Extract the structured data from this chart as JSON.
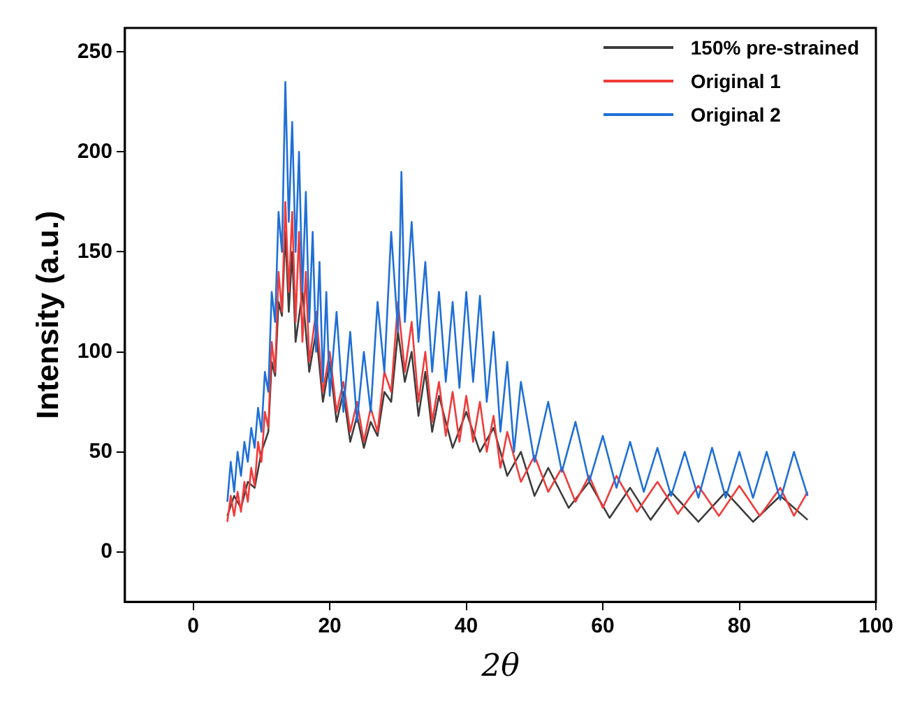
{
  "chart_data": {
    "type": "line",
    "xlabel": "2θ",
    "ylabel": "Intensity (a.u.)",
    "xlim": [
      -10,
      100
    ],
    "xticks": [
      0,
      20,
      40,
      60,
      80,
      100
    ],
    "ylim": [
      -25,
      262
    ],
    "yticks": [
      0,
      50,
      100,
      150,
      200,
      250
    ],
    "grid": false,
    "legend": "top right",
    "marker": "none",
    "line_style": "solid",
    "series": [
      {
        "name": "150% pre-strained",
        "color": "#3c3c3c",
        "x": [
          5,
          6,
          7,
          8,
          9,
          10,
          11,
          11.5,
          12,
          12.5,
          13,
          13.5,
          14,
          14.5,
          15,
          16,
          17,
          18,
          19,
          20,
          21,
          22,
          23,
          24,
          25,
          26,
          27,
          28,
          29,
          30,
          31,
          32,
          33,
          34,
          35,
          36,
          38,
          40,
          42,
          44,
          46,
          48,
          50,
          52,
          55,
          58,
          61,
          64,
          67,
          70,
          74,
          78,
          82,
          86,
          90
        ],
        "values": [
          18,
          28,
          22,
          35,
          32,
          50,
          60,
          95,
          88,
          125,
          118,
          160,
          120,
          150,
          105,
          130,
          90,
          110,
          75,
          95,
          65,
          80,
          55,
          68,
          52,
          65,
          58,
          80,
          75,
          110,
          85,
          100,
          68,
          90,
          60,
          78,
          52,
          70,
          50,
          62,
          38,
          50,
          28,
          42,
          22,
          35,
          17,
          32,
          16,
          30,
          15,
          30,
          15,
          28,
          16
        ]
      },
      {
        "name": "Original 1",
        "color": "#ef3b3b",
        "x": [
          5,
          5.5,
          6,
          6.5,
          7,
          7.5,
          8,
          8.5,
          9,
          9.5,
          10,
          10.5,
          11,
          11.5,
          12,
          12.5,
          13,
          13.5,
          14,
          14.5,
          15,
          15.5,
          16,
          16.5,
          17,
          18,
          19,
          20,
          21,
          22,
          23,
          24,
          25,
          26,
          27,
          28,
          29,
          30,
          31,
          32,
          33,
          34,
          35,
          36,
          37,
          38,
          39,
          40,
          41,
          42,
          43,
          44,
          45,
          46,
          48,
          50,
          52,
          54,
          56,
          58,
          60,
          62,
          65,
          68,
          71,
          74,
          77,
          80,
          83,
          86,
          88,
          90
        ],
        "values": [
          15,
          28,
          18,
          30,
          20,
          35,
          25,
          42,
          33,
          55,
          45,
          70,
          62,
          105,
          90,
          140,
          120,
          175,
          130,
          170,
          115,
          160,
          105,
          140,
          95,
          120,
          80,
          100,
          70,
          85,
          60,
          75,
          55,
          72,
          60,
          90,
          80,
          125,
          90,
          115,
          75,
          100,
          65,
          85,
          58,
          80,
          55,
          78,
          55,
          75,
          50,
          68,
          42,
          60,
          35,
          48,
          30,
          42,
          25,
          38,
          22,
          38,
          20,
          35,
          19,
          33,
          18,
          33,
          18,
          32,
          18,
          30
        ]
      },
      {
        "name": "Original 2",
        "color": "#1f6fd6",
        "x": [
          5,
          5.5,
          6,
          6.5,
          7,
          7.5,
          8,
          8.5,
          9,
          9.5,
          10,
          10.5,
          11,
          11.5,
          12,
          12.5,
          13,
          13.5,
          14,
          14.5,
          15,
          15.5,
          16,
          16.5,
          17,
          17.5,
          18,
          18.5,
          19,
          19.5,
          20,
          21,
          22,
          23,
          24,
          25,
          26,
          27,
          28,
          29,
          30,
          30.5,
          31,
          32,
          33,
          34,
          35,
          36,
          37,
          38,
          39,
          40,
          41,
          42,
          43,
          44,
          45,
          46,
          47,
          48,
          50,
          52,
          54,
          56,
          58,
          60,
          62,
          64,
          66,
          68,
          70,
          72,
          74,
          76,
          78,
          80,
          82,
          84,
          86,
          88,
          90
        ],
        "values": [
          25,
          45,
          30,
          50,
          38,
          55,
          45,
          62,
          52,
          72,
          60,
          90,
          80,
          130,
          115,
          170,
          150,
          235,
          165,
          215,
          150,
          200,
          130,
          180,
          115,
          160,
          100,
          145,
          85,
          130,
          78,
          120,
          70,
          110,
          65,
          100,
          70,
          125,
          90,
          160,
          110,
          190,
          115,
          165,
          105,
          145,
          90,
          130,
          85,
          125,
          82,
          130,
          85,
          128,
          75,
          110,
          60,
          95,
          50,
          85,
          45,
          75,
          40,
          65,
          35,
          58,
          32,
          55,
          30,
          52,
          28,
          50,
          27,
          52,
          27,
          50,
          27,
          50,
          26,
          50,
          28
        ]
      }
    ]
  }
}
